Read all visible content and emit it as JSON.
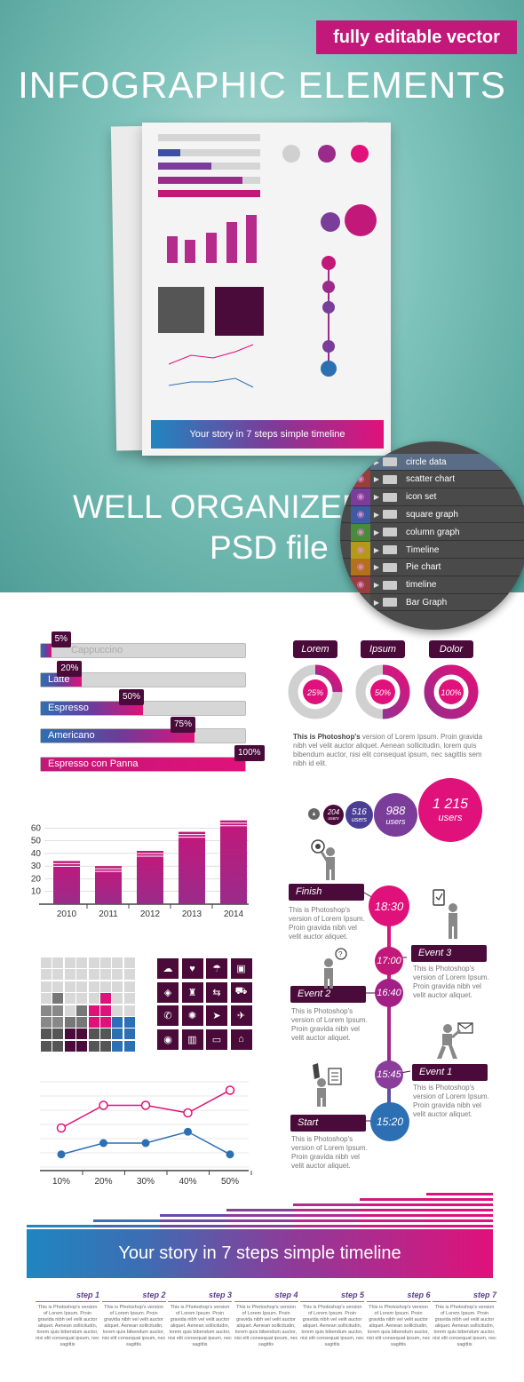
{
  "hero": {
    "badge": "fully editable vector",
    "title": "INFOGRAPHIC ELEMENTS",
    "well": "WELL ORGANIZED",
    "psd": "PSD file",
    "mini_timeline_title": "Your story in 7 steps simple timeline"
  },
  "layers": [
    {
      "name": "circle data",
      "eye": false
    },
    {
      "name": "scatter chart",
      "eye": true
    },
    {
      "name": "icon set",
      "eye": true
    },
    {
      "name": "square graph",
      "eye": true
    },
    {
      "name": "column graph",
      "eye": true
    },
    {
      "name": "Timeline",
      "eye": true
    },
    {
      "name": "Pie chart",
      "eye": true
    },
    {
      "name": "timeline",
      "eye": true
    },
    {
      "name": "Bar Graph",
      "eye": false
    }
  ],
  "progress": [
    {
      "label": "Cappuccino",
      "value": 5,
      "tag": "5%"
    },
    {
      "label": "Latte",
      "value": 20,
      "tag": "20%"
    },
    {
      "label": "Espresso",
      "value": 50,
      "tag": "50%"
    },
    {
      "label": "Americano",
      "value": 75,
      "tag": "75%"
    },
    {
      "label": "Espresso con Panna",
      "value": 100,
      "tag": "100%"
    }
  ],
  "donuts": [
    {
      "label": "Lorem",
      "value": 25,
      "text": "25%"
    },
    {
      "label": "Ipsum",
      "value": 50,
      "text": "50%"
    },
    {
      "label": "Dolor",
      "value": 100,
      "text": "100%"
    }
  ],
  "donut_desc": {
    "bold": "This is Photoshop's",
    "rest": " version  of Lorem Ipsum. Proin gravida nibh vel velit auctor aliquet. Aenean sollicitudin, lorem quis bibendum auctor, nisi elit consequat ipsum, nec sagittis sem nibh id elit."
  },
  "users": [
    {
      "num": "204",
      "label": "users"
    },
    {
      "num": "516",
      "label": "users"
    },
    {
      "num": "988",
      "label": "users"
    },
    {
      "num": "1 215",
      "label": "users"
    }
  ],
  "users_small": "users",
  "timeline": {
    "events": [
      {
        "name": "Finish",
        "time": "18:30"
      },
      {
        "name": "Event 3",
        "time": "17:00"
      },
      {
        "name": "Event 2",
        "time": "16:40"
      },
      {
        "name": "Event 1",
        "time": "15:45"
      },
      {
        "name": "Start",
        "time": "15:20"
      }
    ],
    "desc": "This is Photoshop's version  of Lorem Ipsum. Proin gravida nibh vel velit auctor aliquet."
  },
  "chart_data": [
    {
      "type": "bar",
      "categories": [
        "2010",
        "2011",
        "2012",
        "2013",
        "2014"
      ],
      "values": [
        34,
        30,
        42,
        57,
        66
      ],
      "ylim": [
        0,
        70
      ],
      "yticks": [
        "60",
        "50",
        "40",
        "30",
        "20",
        "10"
      ],
      "grid": true
    },
    {
      "type": "line",
      "x": [
        "10%",
        "20%",
        "30%",
        "40%",
        "50%"
      ],
      "series": [
        {
          "values": [
            40,
            70,
            70,
            60,
            90
          ],
          "color": "#e0117a"
        },
        {
          "values": [
            5,
            20,
            20,
            35,
            5
          ],
          "color": "#2d6fb3"
        }
      ],
      "grid": true
    }
  ],
  "square_graph": {
    "cols": 8,
    "rows": 8,
    "colors": [
      "#9a9a9a",
      "#4a0b3a",
      "#e0117a",
      "#2d6fb3"
    ]
  },
  "icons": [
    "cloud-icon",
    "heart-icon",
    "umbrella-icon",
    "briefcase-icon",
    "box-icon",
    "drink-icon",
    "signpost-icon",
    "cart-icon",
    "phone-icon",
    "bulb-icon",
    "cursor-icon",
    "plane-icon",
    "eye-icon",
    "trash-icon",
    "folder-icon",
    "home-icon"
  ],
  "icon_glyphs": [
    "☁",
    "♥",
    "☂",
    "▣",
    "◈",
    "♜",
    "⇆",
    "⛟",
    "✆",
    "✺",
    "➤",
    "✈",
    "◉",
    "▥",
    "▭",
    "⌂"
  ],
  "story": {
    "title": "Your story in 7 steps simple timeline",
    "steps": [
      "step 1",
      "step 2",
      "step 3",
      "step 4",
      "step 5",
      "step 6",
      "step 7"
    ],
    "desc": "This is Photoshop's version of Lorem Ipsum. Proin gravida nibh vel velit auctor aliquet. Aenean sollicitudin, lorem quis bibendum auctor, nisi elit consequat ipsum, nec sagittis"
  }
}
